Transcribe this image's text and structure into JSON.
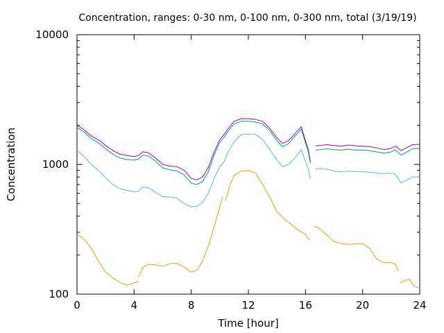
{
  "chart_data": {
    "type": "line",
    "title": "Concentration, ranges: 0-30 nm, 0-100 nm, 0-300 nm, total (3/19/19)",
    "xlabel": "Time [hour]",
    "ylabel": "Concentration",
    "xlim": [
      0,
      24
    ],
    "ylim": [
      100,
      10000
    ],
    "yscale": "log",
    "grid": false,
    "legend": "none",
    "x_ticks": [
      "0",
      "4",
      "8",
      "12",
      "16",
      "20",
      "24"
    ],
    "x_tick_values": [
      0,
      4,
      8,
      12,
      16,
      20,
      24
    ],
    "y_ticks": [
      "100",
      "1000",
      "10000"
    ],
    "y_tick_values": [
      100,
      1000,
      10000
    ],
    "series": [
      {
        "color": "#9400d3",
        "segments": [
          [
            [
              0,
              2000
            ],
            [
              0.5,
              1850
            ],
            [
              1,
              1650
            ],
            [
              1.5,
              1550
            ],
            [
              2,
              1400
            ],
            [
              2.5,
              1280
            ],
            [
              3,
              1200
            ],
            [
              3.5,
              1170
            ],
            [
              4,
              1150
            ],
            [
              4.3,
              1170
            ],
            [
              4.6,
              1250
            ],
            [
              5,
              1230
            ],
            [
              5.5,
              1120
            ],
            [
              6,
              1000
            ],
            [
              6.5,
              970
            ],
            [
              7,
              960
            ],
            [
              7.5,
              900
            ],
            [
              8,
              780
            ],
            [
              8.4,
              760
            ],
            [
              8.8,
              800
            ],
            [
              9.2,
              950
            ],
            [
              9.6,
              1250
            ],
            [
              10,
              1550
            ],
            [
              10.3,
              1700
            ],
            [
              10.6,
              1900
            ],
            [
              11,
              2150
            ],
            [
              11.5,
              2250
            ],
            [
              12,
              2250
            ],
            [
              12.5,
              2220
            ],
            [
              13,
              2150
            ],
            [
              13.5,
              1900
            ],
            [
              14,
              1600
            ],
            [
              14.4,
              1450
            ],
            [
              14.8,
              1520
            ],
            [
              15.2,
              1700
            ],
            [
              15.7,
              1950
            ],
            [
              16.2,
              1300
            ],
            [
              16.35,
              1050
            ]
          ],
          [
            [
              16.7,
              1390
            ],
            [
              17,
              1400
            ],
            [
              17.5,
              1420
            ],
            [
              18,
              1400
            ],
            [
              18.5,
              1380
            ],
            [
              19,
              1410
            ],
            [
              19.5,
              1390
            ],
            [
              20,
              1380
            ],
            [
              20.5,
              1370
            ],
            [
              21,
              1340
            ],
            [
              21.5,
              1300
            ],
            [
              22,
              1330
            ],
            [
              22.3,
              1380
            ],
            [
              22.7,
              1280
            ],
            [
              23,
              1330
            ],
            [
              23.5,
              1420
            ],
            [
              24,
              1430
            ]
          ]
        ]
      },
      {
        "color": "#009e73",
        "segments": [
          [
            [
              0,
              1920
            ],
            [
              0.5,
              1780
            ],
            [
              1,
              1580
            ],
            [
              1.5,
              1470
            ],
            [
              2,
              1320
            ],
            [
              2.5,
              1200
            ],
            [
              3,
              1120
            ],
            [
              3.5,
              1090
            ],
            [
              4,
              1080
            ],
            [
              4.3,
              1100
            ],
            [
              4.6,
              1180
            ],
            [
              5,
              1160
            ],
            [
              5.5,
              1060
            ],
            [
              6,
              940
            ],
            [
              6.5,
              910
            ],
            [
              7,
              890
            ],
            [
              7.5,
              830
            ],
            [
              8,
              715
            ],
            [
              8.4,
              700
            ],
            [
              8.8,
              740
            ],
            [
              9.2,
              880
            ],
            [
              9.6,
              1180
            ],
            [
              10,
              1480
            ],
            [
              10.3,
              1620
            ],
            [
              10.6,
              1820
            ],
            [
              11,
              2050
            ],
            [
              11.5,
              2150
            ],
            [
              12,
              2150
            ],
            [
              12.5,
              2120
            ],
            [
              13,
              2050
            ],
            [
              13.5,
              1820
            ],
            [
              14,
              1520
            ],
            [
              14.4,
              1370
            ],
            [
              14.8,
              1440
            ],
            [
              15.2,
              1620
            ],
            [
              15.7,
              1870
            ],
            [
              16.2,
              1250
            ],
            [
              16.35,
              1020
            ]
          ],
          [
            [
              16.7,
              1290
            ],
            [
              17,
              1300
            ],
            [
              17.5,
              1320
            ],
            [
              18,
              1300
            ],
            [
              18.5,
              1290
            ],
            [
              19,
              1310
            ],
            [
              19.5,
              1290
            ],
            [
              20,
              1290
            ],
            [
              20.5,
              1280
            ],
            [
              21,
              1250
            ],
            [
              21.5,
              1220
            ],
            [
              22,
              1250
            ],
            [
              22.3,
              1300
            ],
            [
              22.7,
              1180
            ],
            [
              23,
              1230
            ],
            [
              23.5,
              1320
            ],
            [
              24,
              1330
            ]
          ]
        ]
      },
      {
        "color": "#56b4e9",
        "segments": [
          [
            [
              0,
              1280
            ],
            [
              0.5,
              1150
            ],
            [
              1,
              1000
            ],
            [
              1.5,
              900
            ],
            [
              2,
              790
            ],
            [
              2.5,
              700
            ],
            [
              3,
              650
            ],
            [
              3.5,
              630
            ],
            [
              4,
              615
            ],
            [
              4.3,
              620
            ],
            [
              4.6,
              670
            ],
            [
              5,
              660
            ],
            [
              5.5,
              610
            ],
            [
              6,
              565
            ],
            [
              6.5,
              560
            ],
            [
              7,
              550
            ],
            [
              7.5,
              500
            ],
            [
              8,
              470
            ],
            [
              8.4,
              475
            ],
            [
              8.8,
              510
            ],
            [
              9.2,
              600
            ],
            [
              9.6,
              780
            ],
            [
              10,
              960
            ],
            [
              10.3,
              1050
            ],
            [
              10.6,
              1250
            ],
            [
              11,
              1500
            ],
            [
              11.5,
              1700
            ],
            [
              12,
              1720
            ],
            [
              12.5,
              1700
            ],
            [
              13,
              1560
            ],
            [
              13.5,
              1300
            ],
            [
              14,
              1080
            ],
            [
              14.4,
              960
            ],
            [
              14.8,
              1000
            ],
            [
              15.2,
              1100
            ],
            [
              15.7,
              1300
            ],
            [
              16.2,
              920
            ],
            [
              16.35,
              770
            ]
          ],
          [
            [
              16.7,
              920
            ],
            [
              17,
              930
            ],
            [
              17.5,
              920
            ],
            [
              18,
              890
            ],
            [
              18.5,
              875
            ],
            [
              19,
              890
            ],
            [
              19.5,
              880
            ],
            [
              20,
              880
            ],
            [
              20.5,
              870
            ],
            [
              21,
              860
            ],
            [
              21.5,
              850
            ],
            [
              22,
              860
            ],
            [
              22.3,
              840
            ],
            [
              22.7,
              720
            ],
            [
              23,
              750
            ],
            [
              23.5,
              800
            ],
            [
              24,
              800
            ]
          ]
        ]
      },
      {
        "color": "#e69f00",
        "segments": [
          [
            [
              0,
              290
            ],
            [
              0.5,
              265
            ],
            [
              1,
              225
            ],
            [
              1.5,
              180
            ],
            [
              2,
              148
            ],
            [
              2.5,
              133
            ],
            [
              3,
              123
            ],
            [
              3.5,
              118
            ],
            [
              4,
              122
            ],
            [
              4.3,
              125
            ]
          ],
          [
            [
              4.3,
              135
            ],
            [
              4.6,
              160
            ],
            [
              5,
              170
            ],
            [
              5.5,
              168
            ],
            [
              6,
              164
            ],
            [
              6.5,
              172
            ],
            [
              7,
              173
            ],
            [
              7.5,
              162
            ],
            [
              8,
              148
            ],
            [
              8.4,
              153
            ],
            [
              8.8,
              180
            ],
            [
              9.2,
              235
            ],
            [
              9.6,
              330
            ],
            [
              10,
              470
            ],
            [
              10.2,
              565
            ]
          ],
          [
            [
              10.4,
              525
            ],
            [
              10.7,
              690
            ],
            [
              11,
              820
            ],
            [
              11.5,
              890
            ],
            [
              12,
              895
            ],
            [
              12.5,
              860
            ],
            [
              13,
              700
            ],
            [
              13.5,
              560
            ],
            [
              14,
              430
            ],
            [
              14.5,
              380
            ],
            [
              15,
              345
            ],
            [
              15.5,
              310
            ],
            [
              16,
              290
            ],
            [
              16.2,
              265
            ],
            [
              16.35,
              265
            ]
          ],
          [
            [
              16.6,
              335
            ],
            [
              17,
              320
            ],
            [
              17.5,
              285
            ],
            [
              18,
              255
            ],
            [
              18.5,
              245
            ],
            [
              19,
              242
            ],
            [
              19.5,
              244
            ],
            [
              20,
              245
            ],
            [
              20.5,
              225
            ],
            [
              21,
              185
            ],
            [
              21.5,
              175
            ],
            [
              22,
              175
            ],
            [
              22.3,
              170
            ],
            [
              22.5,
              150
            ]
          ],
          [
            [
              22.6,
              122
            ],
            [
              23,
              128
            ],
            [
              23.3,
              130
            ],
            [
              23.6,
              115
            ],
            [
              24,
              112
            ]
          ]
        ]
      }
    ]
  }
}
